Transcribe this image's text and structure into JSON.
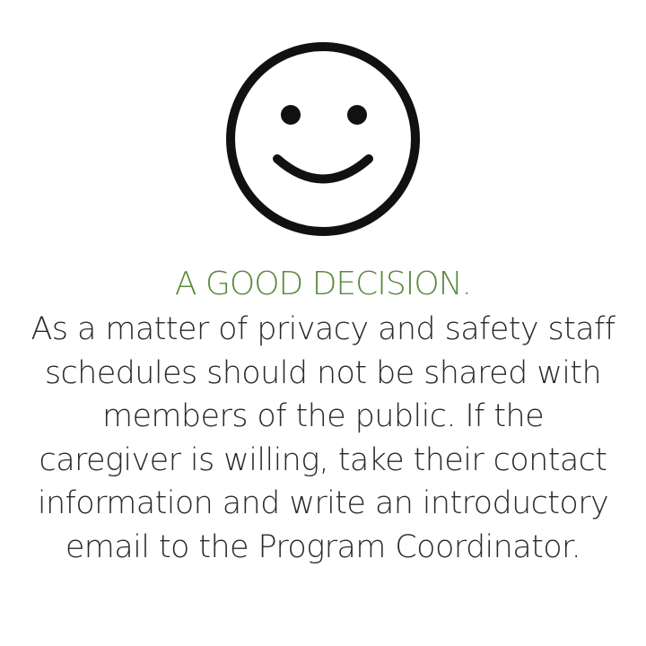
{
  "colors": {
    "heading": "#5a8a3c",
    "body_text": "#2a2a2a",
    "icon_stroke": "#111111",
    "background": "#ffffff"
  },
  "icon": "smiley-face-icon",
  "heading": "A GOOD DECISION.",
  "body_text": "As a matter of privacy and safety staff schedules should not be shared with members of the public. If the caregiver is willing, take their contact information and write an introductory email to the Program Coordinator."
}
